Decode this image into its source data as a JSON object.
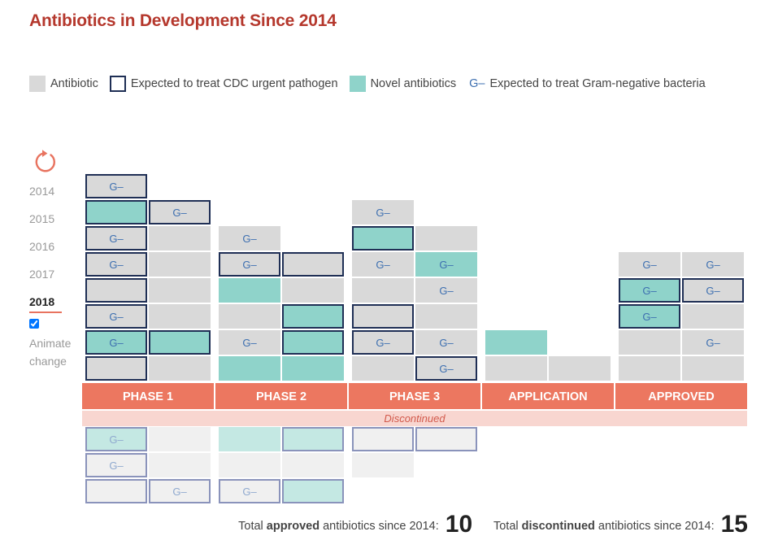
{
  "title": "Antibiotics in Development Since 2014",
  "legend": {
    "antibiotic": "Antibiotic",
    "cdc": "Expected to treat CDC urgent pathogen",
    "novel": "Novel antibiotics",
    "gram_symbol": "G–",
    "gram": "Expected to treat Gram-negative bacteria"
  },
  "colors": {
    "title": "#b5382d",
    "antibiotic": "#d9d9d9",
    "novel": "#8fd3ca",
    "cdc_border": "#1f2f55",
    "gram_text": "#3d6fb0",
    "phase_bar": "#ec7760",
    "discontinued_bar": "#f8d6d0",
    "discontinued_text": "#d2594b"
  },
  "controls": {
    "years": [
      "2014",
      "2015",
      "2016",
      "2017",
      "2018"
    ],
    "selected_year": "2018",
    "animate_checked": true,
    "animate_label": "Animate change",
    "replay_icon": "replay-icon"
  },
  "chart_data": {
    "type": "table",
    "phases": [
      "PHASE 1",
      "PHASE 2",
      "PHASE 3",
      "APPLICATION",
      "APPROVED"
    ],
    "discontinued_label": "Discontinued",
    "active": [
      {
        "phase": "PHASE 1",
        "columns": [
          [
            {
              "cdc": true
            },
            {
              "novel": true,
              "cdc": true,
              "gram": true
            },
            {
              "cdc": true,
              "gram": true
            },
            {
              "cdc": true
            },
            {
              "cdc": true,
              "gram": true
            },
            {
              "cdc": true,
              "gram": true
            },
            {
              "novel": true,
              "cdc": true
            },
            {
              "cdc": true,
              "gram": true
            }
          ],
          [
            {},
            {
              "novel": true,
              "cdc": true
            },
            {},
            {},
            {},
            {},
            {
              "cdc": true,
              "gram": true
            }
          ]
        ]
      },
      {
        "phase": "PHASE 2",
        "columns": [
          [
            {
              "novel": true
            },
            {
              "gram": true
            },
            {},
            {
              "novel": true
            },
            {
              "cdc": true,
              "gram": true
            },
            {
              "gram": true
            }
          ],
          [
            {
              "novel": true
            },
            {
              "novel": true,
              "cdc": true
            },
            {
              "novel": true,
              "cdc": true
            },
            {},
            {
              "cdc": true
            }
          ]
        ]
      },
      {
        "phase": "PHASE 3",
        "columns": [
          [
            {},
            {
              "cdc": true,
              "gram": true
            },
            {
              "cdc": true
            },
            {},
            {
              "gram": true
            },
            {
              "novel": true,
              "cdc": true
            },
            {
              "gram": true
            }
          ],
          [
            {
              "cdc": true,
              "gram": true
            },
            {
              "gram": true
            },
            {},
            {
              "gram": true
            },
            {
              "novel": true,
              "gram": true
            },
            {}
          ]
        ]
      },
      {
        "phase": "APPLICATION",
        "columns": [
          [
            {},
            {
              "novel": true
            }
          ],
          [
            {}
          ]
        ]
      },
      {
        "phase": "APPROVED",
        "columns": [
          [
            {},
            {},
            {
              "novel": true,
              "cdc": true,
              "gram": true
            },
            {
              "novel": true,
              "cdc": true,
              "gram": true
            },
            {
              "gram": true
            }
          ],
          [
            {},
            {
              "gram": true
            },
            {},
            {
              "cdc": true,
              "gram": true
            },
            {
              "gram": true
            }
          ]
        ]
      }
    ],
    "discontinued": [
      {
        "phase": "PHASE 1",
        "columns": [
          [
            {
              "novel": true,
              "cdc": true,
              "gram": true
            },
            {
              "cdc": true,
              "gram": true
            },
            {
              "cdc": true
            }
          ],
          [
            {},
            {},
            {
              "cdc": true,
              "gram": true
            }
          ]
        ]
      },
      {
        "phase": "PHASE 2",
        "columns": [
          [
            {
              "novel": true
            },
            {},
            {
              "cdc": true,
              "gram": true
            }
          ],
          [
            {
              "novel": true,
              "cdc": true
            },
            {},
            {
              "novel": true,
              "cdc": true
            }
          ]
        ]
      },
      {
        "phase": "PHASE 3",
        "columns": [
          [
            {
              "cdc": true
            },
            {}
          ],
          [
            {
              "cdc": true
            }
          ]
        ]
      },
      {
        "phase": "APPLICATION",
        "columns": [
          [],
          []
        ]
      },
      {
        "phase": "APPROVED",
        "columns": [
          [],
          []
        ]
      }
    ]
  },
  "totals": {
    "approved_prefix": "Total",
    "approved_bold": "approved",
    "approved_suffix": "antibiotics since 2014:",
    "approved_value": "10",
    "discontinued_prefix": "Total",
    "discontinued_bold": "discontinued",
    "discontinued_suffix": "antibiotics since 2014:",
    "discontinued_value": "15"
  }
}
